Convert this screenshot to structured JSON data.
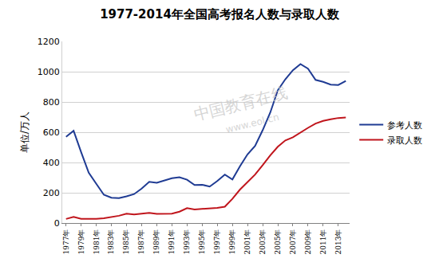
{
  "chart_data": {
    "type": "line",
    "title": "1977-2014年全国高考报名人数与录取人数",
    "y_label": "单位/万人",
    "annotations": [
      "中国教育在线",
      "www.eol.cn"
    ],
    "categories": [
      "1977年",
      null,
      "1979年",
      null,
      "1981年",
      null,
      "1983年",
      null,
      "1985年",
      null,
      "1987年",
      null,
      "1989年",
      null,
      "1991年",
      null,
      "1993年",
      null,
      "1995年",
      null,
      "1997年",
      null,
      "1999年",
      null,
      "2001年",
      null,
      "2003年",
      null,
      "2005年",
      null,
      "2007年",
      null,
      "2009年",
      null,
      "2011年",
      null,
      "2013年",
      null
    ],
    "series": [
      {
        "name": "参考人数",
        "color": "#1f3b93",
        "values": [
          570,
          610,
          468,
          333,
          259,
          187,
          167,
          164,
          176,
          191,
          228,
          272,
          266,
          283,
          296,
          303,
          286,
          251,
          253,
          241,
          278,
          320,
          288,
          375,
          454,
          510,
          613,
          729,
          877,
          950,
          1010,
          1050,
          1020,
          946,
          933,
          915,
          912,
          939
        ]
      },
      {
        "name": "录取人数",
        "color": "#c0151c",
        "values": [
          27,
          40,
          28,
          28,
          28,
          32,
          39,
          48,
          62,
          57,
          62,
          67,
          60,
          61,
          62,
          75,
          98,
          90,
          93,
          97,
          100,
          108,
          160,
          221,
          268,
          320,
          382,
          447,
          504,
          546,
          566,
          599,
          629,
          657,
          675,
          685,
          694,
          698
        ]
      }
    ],
    "ylim": [
      0,
      1200
    ],
    "yticks": [
      0,
      200,
      400,
      600,
      800,
      1000,
      1200
    ],
    "grid": true,
    "legend": "right"
  }
}
